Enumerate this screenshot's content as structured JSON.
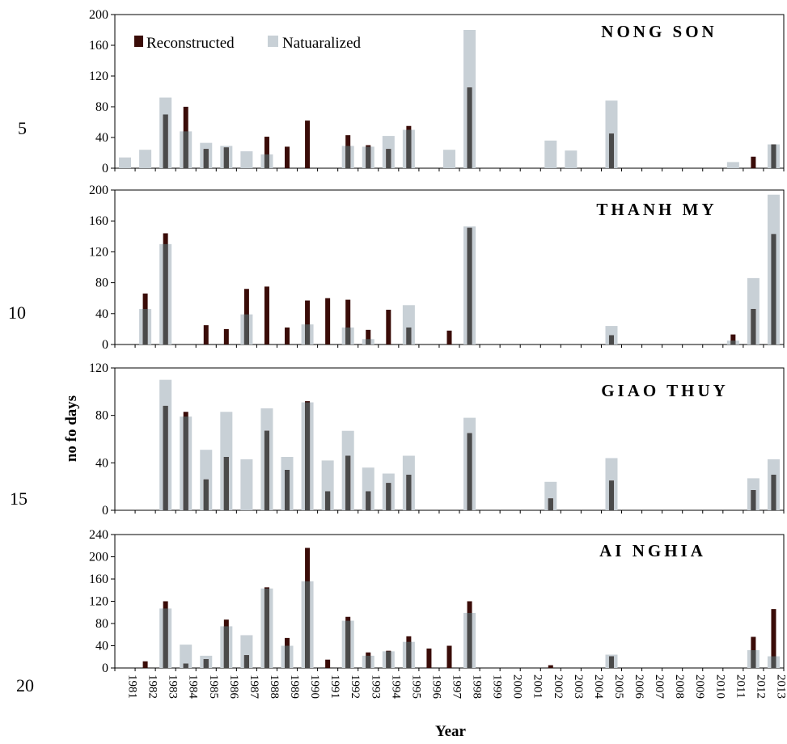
{
  "colors": {
    "reconstructed": "#3a0c08",
    "naturalized": "#c8d0d6",
    "overlap": "#4a4a4a",
    "axis": "#000000"
  },
  "line_numbers": [
    "5",
    "10",
    "15",
    "20"
  ],
  "xlabel": "Year",
  "ylabel": "no fo days",
  "chart_data": [
    {
      "type": "bar",
      "title": "NONG SON",
      "legend": {
        "position": "top-left",
        "entries": [
          "Reconstructed",
          "Natuaralized"
        ]
      },
      "categories": [
        "1981",
        "1982",
        "1983",
        "1984",
        "1985",
        "1986",
        "1987",
        "1988",
        "1989",
        "1990",
        "1991",
        "1992",
        "1993",
        "1994",
        "1995",
        "1996",
        "1997",
        "1998",
        "1999",
        "2000",
        "2001",
        "2002",
        "2003",
        "2004",
        "2005",
        "2006",
        "2007",
        "2008",
        "2009",
        "2010",
        "2011",
        "2012",
        "2013"
      ],
      "ylim": [
        0,
        200
      ],
      "yticks": [
        0,
        40,
        80,
        120,
        160,
        200
      ],
      "series": [
        {
          "name": "Reconstructed",
          "values": [
            0,
            0,
            70,
            80,
            25,
            27,
            0,
            41,
            28,
            62,
            0,
            43,
            30,
            25,
            55,
            0,
            0,
            105,
            0,
            0,
            0,
            0,
            0,
            0,
            45,
            0,
            0,
            0,
            0,
            0,
            0,
            15,
            31
          ]
        },
        {
          "name": "Natuaralized",
          "values": [
            14,
            24,
            92,
            48,
            33,
            29,
            22,
            18,
            0,
            0,
            0,
            29,
            28,
            42,
            50,
            0,
            24,
            180,
            0,
            0,
            0,
            36,
            23,
            0,
            88,
            0,
            0,
            0,
            0,
            0,
            8,
            0,
            31
          ]
        }
      ]
    },
    {
      "type": "bar",
      "title": "THANH MY",
      "categories": [
        "1981",
        "1982",
        "1983",
        "1984",
        "1985",
        "1986",
        "1987",
        "1988",
        "1989",
        "1990",
        "1991",
        "1992",
        "1993",
        "1994",
        "1995",
        "1996",
        "1997",
        "1998",
        "1999",
        "2000",
        "2001",
        "2002",
        "2003",
        "2004",
        "2005",
        "2006",
        "2007",
        "2008",
        "2009",
        "2010",
        "2011",
        "2012",
        "2013"
      ],
      "ylim": [
        0,
        200
      ],
      "yticks": [
        0,
        40,
        80,
        120,
        160,
        200
      ],
      "series": [
        {
          "name": "Reconstructed",
          "values": [
            0,
            66,
            144,
            0,
            25,
            20,
            72,
            75,
            22,
            57,
            60,
            58,
            19,
            45,
            22,
            0,
            18,
            151,
            0,
            0,
            0,
            0,
            0,
            0,
            12,
            0,
            0,
            0,
            0,
            0,
            13,
            46,
            143
          ]
        },
        {
          "name": "Natuaralized",
          "values": [
            0,
            46,
            130,
            0,
            0,
            0,
            39,
            0,
            0,
            26,
            0,
            22,
            7,
            0,
            51,
            0,
            0,
            153,
            0,
            0,
            0,
            0,
            0,
            0,
            24,
            0,
            0,
            0,
            0,
            0,
            5,
            86,
            194
          ]
        }
      ]
    },
    {
      "type": "bar",
      "title": "GIAO THUY",
      "categories": [
        "1981",
        "1982",
        "1983",
        "1984",
        "1985",
        "1986",
        "1987",
        "1988",
        "1989",
        "1990",
        "1991",
        "1992",
        "1993",
        "1994",
        "1995",
        "1996",
        "1997",
        "1998",
        "1999",
        "2000",
        "2001",
        "2002",
        "2003",
        "2004",
        "2005",
        "2006",
        "2007",
        "2008",
        "2009",
        "2010",
        "2011",
        "2012",
        "2013"
      ],
      "ylim": [
        0,
        120
      ],
      "yticks": [
        0,
        40,
        80,
        120
      ],
      "series": [
        {
          "name": "Reconstructed",
          "values": [
            0,
            0,
            88,
            83,
            26,
            45,
            0,
            67,
            34,
            92,
            16,
            46,
            16,
            23,
            30,
            0,
            0,
            65,
            0,
            0,
            0,
            10,
            0,
            0,
            25,
            0,
            0,
            0,
            0,
            0,
            0,
            17,
            30
          ]
        },
        {
          "name": "Natuaralized",
          "values": [
            0,
            0,
            110,
            79,
            51,
            83,
            43,
            86,
            45,
            91,
            42,
            67,
            36,
            31,
            46,
            0,
            0,
            78,
            0,
            0,
            0,
            24,
            0,
            0,
            44,
            0,
            0,
            0,
            0,
            0,
            0,
            27,
            43
          ]
        }
      ]
    },
    {
      "type": "bar",
      "title": "AI NGHIA",
      "categories": [
        "1981",
        "1982",
        "1983",
        "1984",
        "1985",
        "1986",
        "1987",
        "1988",
        "1989",
        "1990",
        "1991",
        "1992",
        "1993",
        "1994",
        "1995",
        "1996",
        "1997",
        "1998",
        "1999",
        "2000",
        "2001",
        "2002",
        "2003",
        "2004",
        "2005",
        "2006",
        "2007",
        "2008",
        "2009",
        "2010",
        "2011",
        "2012",
        "2013"
      ],
      "ylim": [
        0,
        240
      ],
      "yticks": [
        0,
        40,
        80,
        120,
        160,
        200,
        240
      ],
      "series": [
        {
          "name": "Reconstructed",
          "values": [
            0,
            12,
            120,
            8,
            16,
            87,
            23,
            145,
            54,
            216,
            15,
            92,
            28,
            31,
            57,
            35,
            40,
            120,
            0,
            0,
            0,
            5,
            0,
            0,
            21,
            0,
            0,
            0,
            0,
            0,
            0,
            56,
            106
          ]
        },
        {
          "name": "Natuaralized",
          "values": [
            0,
            0,
            107,
            42,
            22,
            75,
            59,
            143,
            40,
            156,
            0,
            85,
            22,
            30,
            47,
            0,
            0,
            99,
            0,
            0,
            0,
            0,
            0,
            0,
            24,
            0,
            0,
            0,
            0,
            0,
            0,
            32,
            21
          ]
        }
      ]
    }
  ]
}
